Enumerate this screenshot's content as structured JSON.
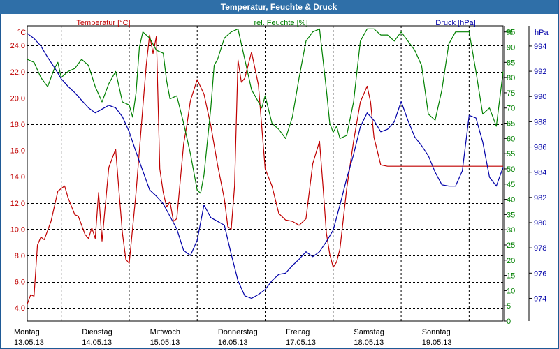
{
  "window": {
    "title": "Temperatur, Feuchte & Druck"
  },
  "legend": {
    "temp": "Temperatur [°C]",
    "hum": "rel. Feuchte [%]",
    "press": "Druck [hPa]"
  },
  "units": {
    "temp": "°C",
    "hum": "%",
    "press": "hPa"
  },
  "colors": {
    "temp": "#c00000",
    "hum": "#008000",
    "press": "#0000a8"
  },
  "chart_data": {
    "type": "line",
    "title": "Temperatur, Feuchte & Druck",
    "grid": true,
    "x_range": [
      0,
      7
    ],
    "day_labels": [
      {
        "day": "Montag",
        "date": "13.05.13"
      },
      {
        "day": "Dienstag",
        "date": "14.05.13"
      },
      {
        "day": "Mittwoch",
        "date": "15.05.13"
      },
      {
        "day": "Donnerstag",
        "date": "16.05.13"
      },
      {
        "day": "Freitag",
        "date": "17.05.13"
      },
      {
        "day": "Samstag",
        "date": "18.05.13"
      },
      {
        "day": "Sonntag",
        "date": "19.05.13"
      }
    ],
    "axes": {
      "temp": {
        "min": 3.0,
        "max": 25.5,
        "ticks": [
          "4,0",
          "6,0",
          "8,0",
          "10,0",
          "12,0",
          "14,0",
          "16,0",
          "18,0",
          "20,0",
          "22,0",
          "24,0"
        ],
        "tick_values": [
          4,
          6,
          8,
          10,
          12,
          14,
          16,
          18,
          20,
          22,
          24
        ]
      },
      "hum": {
        "min": 0,
        "max": 97,
        "ticks": [
          "0",
          "5",
          "10",
          "15",
          "20",
          "25",
          "30",
          "35",
          "40",
          "45",
          "50",
          "55",
          "60",
          "65",
          "70",
          "75",
          "80",
          "85",
          "90",
          "95"
        ],
        "tick_values": [
          0,
          5,
          10,
          15,
          20,
          25,
          30,
          35,
          40,
          45,
          50,
          55,
          60,
          65,
          70,
          75,
          80,
          85,
          90,
          95
        ]
      },
      "press": {
        "min": 972.2,
        "max": 995.6,
        "ticks": [
          "974",
          "976",
          "978",
          "980",
          "982",
          "984",
          "986",
          "988",
          "990",
          "992",
          "994"
        ],
        "tick_values": [
          974,
          976,
          978,
          980,
          982,
          984,
          986,
          988,
          990,
          992,
          994
        ]
      }
    },
    "series": [
      {
        "name": "Temperatur [°C]",
        "axis": "temp",
        "x": [
          0,
          0.05,
          0.1,
          0.15,
          0.2,
          0.25,
          0.35,
          0.45,
          0.55,
          0.6,
          0.7,
          0.75,
          0.85,
          0.9,
          0.95,
          1.0,
          1.05,
          1.1,
          1.2,
          1.3,
          1.35,
          1.4,
          1.45,
          1.5,
          1.6,
          1.7,
          1.75,
          1.8,
          1.85,
          1.9,
          1.95,
          2.0,
          2.05,
          2.1,
          2.15,
          2.2,
          2.3,
          2.35,
          2.4,
          2.5,
          2.6,
          2.7,
          2.8,
          2.9,
          2.95,
          3.0,
          3.05,
          3.1,
          3.15,
          3.2,
          3.3,
          3.4,
          3.5,
          3.6,
          3.7,
          3.8,
          3.9,
          4.0,
          4.1,
          4.2,
          4.3,
          4.35,
          4.4,
          4.45,
          4.5,
          4.55,
          4.6,
          4.7,
          4.8,
          4.9,
          5.0,
          5.05,
          5.1,
          5.2,
          5.3,
          5.4,
          5.5,
          5.6,
          5.7,
          5.8,
          5.9,
          6.0,
          6.05,
          6.1,
          6.2,
          6.3,
          6.35,
          6.45,
          6.55,
          6.65,
          6.75,
          6.85,
          6.95,
          7.0
        ],
        "values": [
          4.3,
          5.0,
          4.9,
          8.8,
          9.4,
          9.2,
          10.6,
          12.9,
          13.3,
          12.4,
          11.1,
          11.0,
          9.6,
          9.3,
          10.1,
          9.3,
          12.8,
          9.1,
          14.7,
          16.1,
          12.9,
          9.7,
          7.7,
          7.4,
          12.8,
          19.3,
          22.5,
          24.8,
          23.4,
          24.7,
          14.6,
          12.8,
          11.7,
          12.1,
          10.6,
          10.8,
          16.5,
          18.0,
          19.8,
          21.4,
          20.3,
          17.9,
          14.9,
          12.3,
          10.2,
          10.0,
          13.3,
          22.9,
          21.2,
          21.5,
          23.5,
          21.0,
          14.6,
          13.3,
          11.2,
          10.7,
          10.6,
          10.3,
          10.8,
          15.0,
          16.7,
          13.3,
          9.7,
          8.1,
          7.1,
          7.5,
          8.5,
          13.1,
          16.7,
          19.7,
          20.9,
          19.7,
          17.0,
          14.9,
          14.8,
          14.8,
          14.8,
          14.8,
          14.8,
          14.8,
          14.8,
          14.8,
          14.8,
          14.8,
          14.8,
          14.8,
          14.8,
          14.8,
          14.8,
          14.8,
          14.8,
          14.8,
          14.8,
          14.8
        ]
      },
      {
        "name": "rel. Feuchte [%]",
        "axis": "hum",
        "x": [
          0,
          0.1,
          0.2,
          0.3,
          0.4,
          0.45,
          0.5,
          0.6,
          0.7,
          0.8,
          0.9,
          1.0,
          1.1,
          1.2,
          1.3,
          1.4,
          1.5,
          1.55,
          1.6,
          1.65,
          1.7,
          1.8,
          1.9,
          2.0,
          2.05,
          2.1,
          2.2,
          2.3,
          2.4,
          2.5,
          2.55,
          2.6,
          2.7,
          2.75,
          2.8,
          2.9,
          3.0,
          3.1,
          3.2,
          3.3,
          3.4,
          3.45,
          3.5,
          3.6,
          3.7,
          3.8,
          3.9,
          4.0,
          4.1,
          4.2,
          4.3,
          4.4,
          4.45,
          4.5,
          4.55,
          4.6,
          4.7,
          4.8,
          4.9,
          5.0,
          5.1,
          5.2,
          5.3,
          5.4,
          5.5,
          5.6,
          5.7,
          5.8,
          5.9,
          6.0,
          6.1,
          6.2,
          6.3,
          6.4,
          6.5,
          6.6,
          6.7,
          6.8,
          6.9,
          7.0
        ],
        "values": [
          86,
          85,
          80,
          77,
          83,
          85,
          80,
          82,
          83,
          86,
          84,
          77,
          72,
          78,
          82,
          72,
          71,
          67,
          75,
          90,
          95,
          93,
          89,
          88,
          79,
          73,
          74,
          65,
          55,
          43,
          42,
          48,
          70,
          84,
          86,
          93,
          95,
          96,
          86,
          76,
          72,
          70,
          74,
          65,
          63,
          60,
          67,
          80,
          92,
          95,
          96,
          76,
          65,
          62,
          64,
          60,
          61,
          72,
          92,
          96,
          96,
          94,
          94,
          92,
          95,
          92,
          89,
          84,
          68,
          66,
          76,
          91,
          95,
          95,
          95,
          82,
          68,
          70,
          64,
          82
        ]
      },
      {
        "name": "Druck [hPa]",
        "axis": "press",
        "x": [
          0,
          0.1,
          0.2,
          0.3,
          0.4,
          0.5,
          0.6,
          0.7,
          0.8,
          0.9,
          1.0,
          1.1,
          1.2,
          1.3,
          1.4,
          1.5,
          1.6,
          1.7,
          1.8,
          1.9,
          2.0,
          2.1,
          2.2,
          2.3,
          2.4,
          2.5,
          2.6,
          2.7,
          2.8,
          2.9,
          3.0,
          3.1,
          3.2,
          3.3,
          3.4,
          3.5,
          3.6,
          3.7,
          3.8,
          3.9,
          4.0,
          4.1,
          4.2,
          4.3,
          4.4,
          4.5,
          4.6,
          4.7,
          4.8,
          4.9,
          5.0,
          5.1,
          5.2,
          5.3,
          5.4,
          5.5,
          5.6,
          5.7,
          5.8,
          5.9,
          6.0,
          6.1,
          6.2,
          6.3,
          6.4,
          6.5,
          6.6,
          6.7,
          6.8,
          6.9,
          7.0
        ],
        "values": [
          995,
          994.6,
          994.0,
          993.1,
          992.3,
          991.4,
          990.8,
          990.3,
          989.7,
          989.1,
          988.7,
          989.0,
          989.3,
          989.1,
          988.4,
          987.2,
          985.6,
          984.1,
          982.6,
          982.1,
          981.5,
          980.5,
          979.5,
          977.8,
          977.4,
          978.6,
          981.4,
          980.4,
          980.1,
          979.8,
          977.5,
          975.4,
          974.2,
          974.0,
          974.3,
          974.7,
          975.4,
          975.9,
          976.0,
          976.6,
          977.1,
          977.7,
          977.3,
          977.7,
          978.5,
          979.4,
          981.4,
          983.5,
          985.4,
          987.6,
          988.7,
          988.1,
          987.2,
          987.4,
          988.0,
          989.6,
          988.1,
          986.8,
          986.1,
          985.3,
          984.0,
          983.0,
          982.9,
          982.9,
          984.1,
          988.5,
          988.3,
          986.4,
          983.6,
          982.9,
          984.4
        ]
      }
    ]
  }
}
